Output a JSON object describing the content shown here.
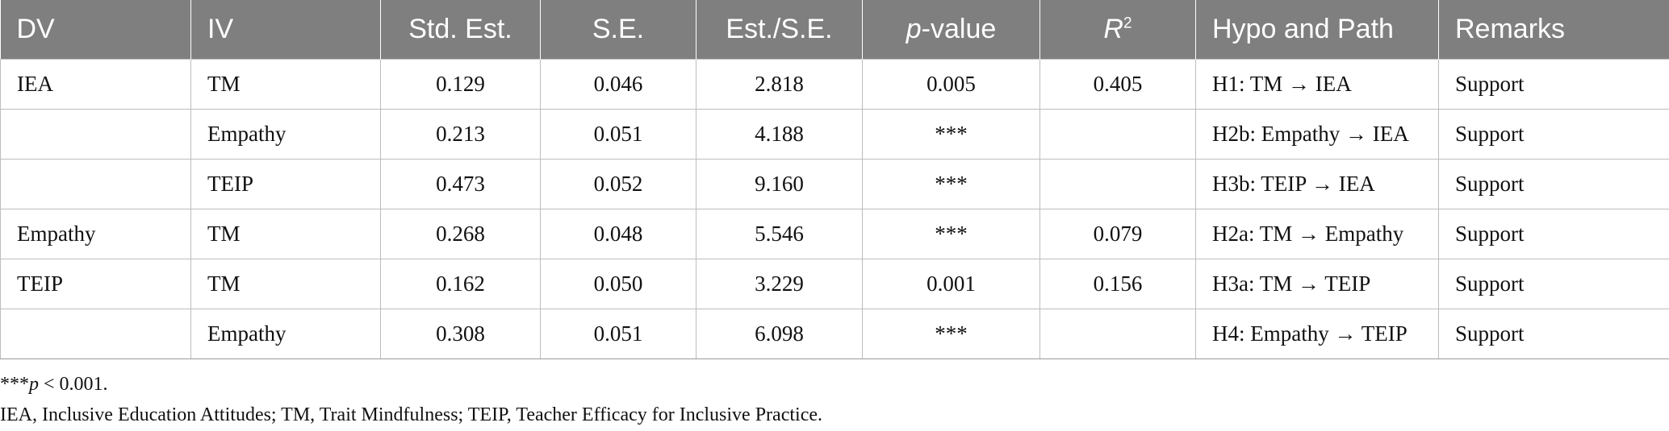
{
  "table": {
    "headers": {
      "dv": "DV",
      "iv": "IV",
      "std_est": "Std. Est.",
      "se": "S.E.",
      "est_se": "Est./S.E.",
      "p_value_italic": "p",
      "p_value_rest": "-value",
      "r2_base": "R",
      "r2_sup": "2",
      "hypo": "Hypo and Path",
      "remarks": "Remarks"
    },
    "rows": [
      {
        "dv": "IEA",
        "iv": "TM",
        "std_est": "0.129",
        "se": "0.046",
        "est_se": "2.818",
        "p": "0.005",
        "r2": "0.405",
        "hypo": "H1: TM → IEA",
        "remarks": "Support"
      },
      {
        "dv": "",
        "iv": "Empathy",
        "std_est": "0.213",
        "se": "0.051",
        "est_se": "4.188",
        "p": "***",
        "r2": "",
        "hypo": "H2b: Empathy → IEA",
        "remarks": "Support"
      },
      {
        "dv": "",
        "iv": "TEIP",
        "std_est": "0.473",
        "se": "0.052",
        "est_se": "9.160",
        "p": "***",
        "r2": "",
        "hypo": "H3b: TEIP → IEA",
        "remarks": "Support"
      },
      {
        "dv": "Empathy",
        "iv": "TM",
        "std_est": "0.268",
        "se": "0.048",
        "est_se": "5.546",
        "p": "***",
        "r2": "0.079",
        "hypo": "H2a: TM → Empathy",
        "remarks": "Support"
      },
      {
        "dv": "TEIP",
        "iv": "TM",
        "std_est": "0.162",
        "se": "0.050",
        "est_se": "3.229",
        "p": "0.001",
        "r2": "0.156",
        "hypo": "H3a: TM → TEIP",
        "remarks": "Support"
      },
      {
        "dv": "",
        "iv": "Empathy",
        "std_est": "0.308",
        "se": "0.051",
        "est_se": "6.098",
        "p": "***",
        "r2": "",
        "hypo": "H4: Empathy → TEIP",
        "remarks": "Support"
      }
    ]
  },
  "footnotes": {
    "significance_stars": "***",
    "significance_p": "p",
    "significance_rest": " < 0.001.",
    "abbreviations": "IEA, Inclusive Education Attitudes; TM, Trait Mindfulness; TEIP, Teacher Efficacy for Inclusive Practice."
  },
  "colors": {
    "header_background": "#7f7f7f",
    "header_text": "#ffffff",
    "grid_lines": "#bdbdbd"
  }
}
